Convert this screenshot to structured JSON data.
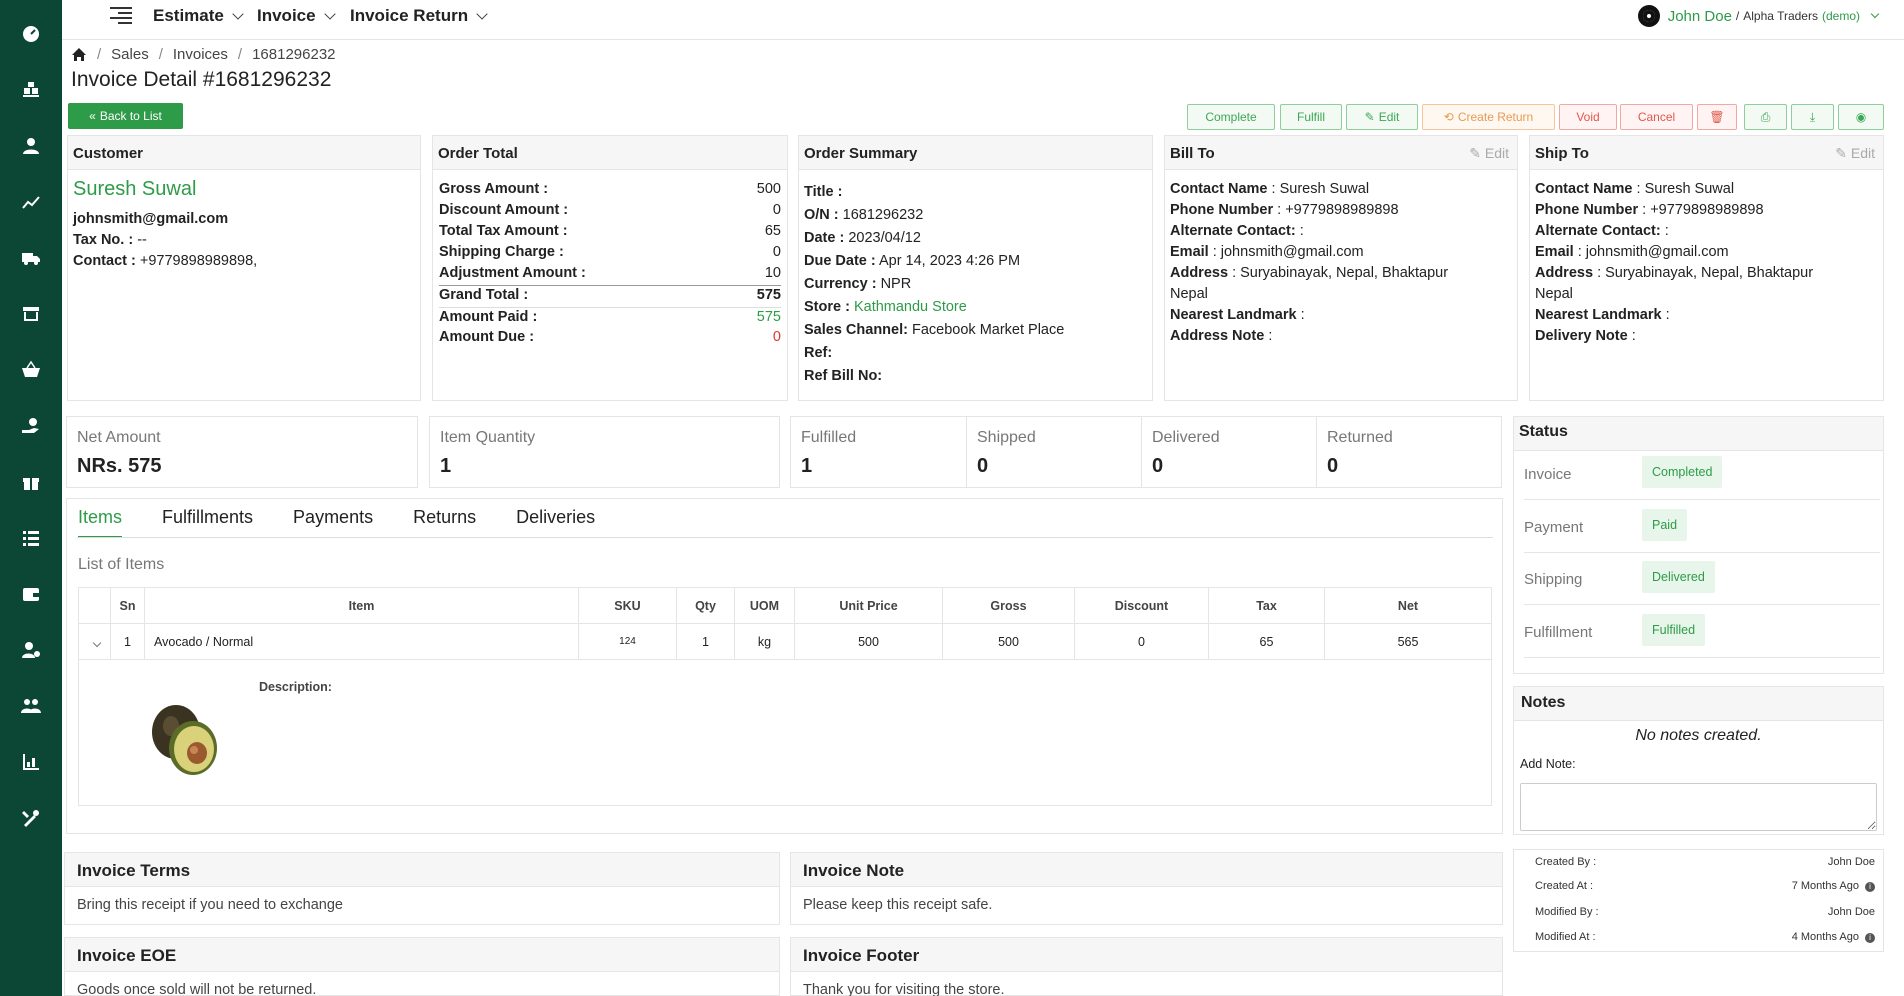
{
  "topbar": {
    "nav": [
      {
        "label": "Estimate"
      },
      {
        "label": "Invoice"
      },
      {
        "label": "Invoice Return"
      }
    ],
    "user_name": "John Doe",
    "user_sep": "/",
    "org": "Alpha Traders",
    "demo": "(demo)"
  },
  "sidebar": {
    "icons": [
      "dashboard-icon",
      "boxes-icon",
      "user-icon",
      "chart-icon",
      "truck-icon",
      "store-icon",
      "basket-icon",
      "hand-money-icon",
      "gift-icon",
      "list-icon",
      "wallet-icon",
      "user-settings-icon",
      "team-icon",
      "report-icon",
      "tools-icon"
    ]
  },
  "breadcrumb": [
    "Sales",
    "Invoices",
    "1681296232"
  ],
  "page_title": "Invoice Detail #1681296232",
  "buttons": {
    "back": "Back to List",
    "complete": "Complete",
    "fulfill": "Fulfill",
    "edit": "Edit",
    "create_return": "Create Return",
    "void": "Void",
    "cancel": "Cancel"
  },
  "customer": {
    "header": "Customer",
    "name": "Suresh Suwal",
    "email": "johnsmith@gmail.com",
    "tax_label": "Tax No. :",
    "tax_value": "--",
    "contact_label": "Contact :",
    "contact_value": "+9779898989898,"
  },
  "order_total": {
    "header": "Order Total",
    "rows": [
      {
        "label": "Gross Amount :",
        "value": "500"
      },
      {
        "label": "Discount Amount :",
        "value": "0"
      },
      {
        "label": "Total Tax Amount :",
        "value": "65"
      },
      {
        "label": "Shipping Charge :",
        "value": "0"
      },
      {
        "label": "Adjustment Amount :",
        "value": "10"
      },
      {
        "label": "Grand Total :",
        "value": "575"
      },
      {
        "label": "Amount Paid :",
        "value": "575"
      },
      {
        "label": "Amount Due :",
        "value": "0"
      }
    ]
  },
  "order_summary": {
    "header": "Order Summary",
    "title_label": "Title :",
    "on_label": "O/N :",
    "on_value": "1681296232",
    "date_label": "Date :",
    "date_value": "2023/04/12",
    "due_label": "Due Date :",
    "due_value": "Apr 14, 2023 4:26 PM",
    "currency_label": "Currency :",
    "currency_value": "NPR",
    "store_label": "Store :",
    "store_value": "Kathmandu Store",
    "channel_label": "Sales Channel:",
    "channel_value": "Facebook Market Place",
    "ref_label": "Ref:",
    "refbill_label": "Ref Bill No:"
  },
  "bill_to": {
    "header": "Bill To",
    "edit": "Edit",
    "contact_label": "Contact Name",
    "contact_value": ": Suresh Suwal",
    "phone_label": "Phone Number",
    "phone_value": ": +9779898989898",
    "alt_label": "Alternate Contact:",
    "alt_value": ":",
    "email_label": "Email",
    "email_value": ": johnsmith@gmail.com",
    "address_label": "Address",
    "address_value": ": Suryabinayak, Nepal, Bhaktapur",
    "address_line2": "Nepal",
    "landmark_label": "Nearest Landmark",
    "landmark_value": ":",
    "note_label": "Address Note",
    "note_value": ":"
  },
  "ship_to": {
    "header": "Ship To",
    "edit": "Edit",
    "contact_label": "Contact Name",
    "contact_value": ": Suresh Suwal",
    "phone_label": "Phone Number",
    "phone_value": ": +9779898989898",
    "alt_label": "Alternate Contact:",
    "alt_value": ":",
    "email_label": "Email",
    "email_value": ": johnsmith@gmail.com",
    "address_label": "Address",
    "address_value": ": Suryabinayak, Nepal, Bhaktapur",
    "address_line2": "Nepal",
    "landmark_label": "Nearest Landmark",
    "landmark_value": ":",
    "note_label": "Delivery Note",
    "note_value": ":"
  },
  "stats": {
    "net_amount_label": "Net Amount",
    "net_amount_value": "NRs. 575",
    "qty_label": "Item Quantity",
    "qty_value": "1",
    "fulfilled_label": "Fulfilled",
    "fulfilled_value": "1",
    "shipped_label": "Shipped",
    "shipped_value": "0",
    "delivered_label": "Delivered",
    "delivered_value": "0",
    "returned_label": "Returned",
    "returned_value": "0"
  },
  "tabs": [
    "Items",
    "Fulfillments",
    "Payments",
    "Returns",
    "Deliveries"
  ],
  "items": {
    "list_title": "List of Items",
    "columns": [
      "Sn",
      "Item",
      "SKU",
      "Qty",
      "UOM",
      "Unit Price",
      "Gross",
      "Discount",
      "Tax",
      "Net"
    ],
    "rows": [
      {
        "sn": "1",
        "item": "Avocado / Normal",
        "sku": "124",
        "qty": "1",
        "uom": "kg",
        "unit_price": "500",
        "gross": "500",
        "discount": "0",
        "tax": "65",
        "net": "565"
      }
    ],
    "description_label": "Description:"
  },
  "status": {
    "header": "Status",
    "rows": [
      {
        "label": "Invoice",
        "badge": "Completed"
      },
      {
        "label": "Payment",
        "badge": "Paid"
      },
      {
        "label": "Shipping",
        "badge": "Delivered"
      },
      {
        "label": "Fulfillment",
        "badge": "Fulfilled"
      }
    ]
  },
  "notes": {
    "header": "Notes",
    "empty": "No notes created.",
    "add_label": "Add Note:"
  },
  "meta": {
    "created_by_label": "Created By :",
    "created_by": "John Doe",
    "created_at_label": "Created At :",
    "created_at": "7 Months Ago",
    "modified_by_label": "Modified By :",
    "modified_by": "John Doe",
    "modified_at_label": "Modified At :",
    "modified_at": "4 Months Ago"
  },
  "bottom": {
    "terms_title": "Invoice Terms",
    "terms_text": "Bring this receipt if you need to exchange",
    "note_title": "Invoice Note",
    "note_text": "Please keep this receipt safe.",
    "eoe_title": "Invoice EOE",
    "eoe_text": "Goods once sold will not be returned.",
    "footer_title": "Invoice Footer",
    "footer_text": "Thank you for visiting the store."
  },
  "colors": {
    "sidebar": "#0c4634",
    "accent": "#2e9b48",
    "danger": "#d9382d"
  }
}
